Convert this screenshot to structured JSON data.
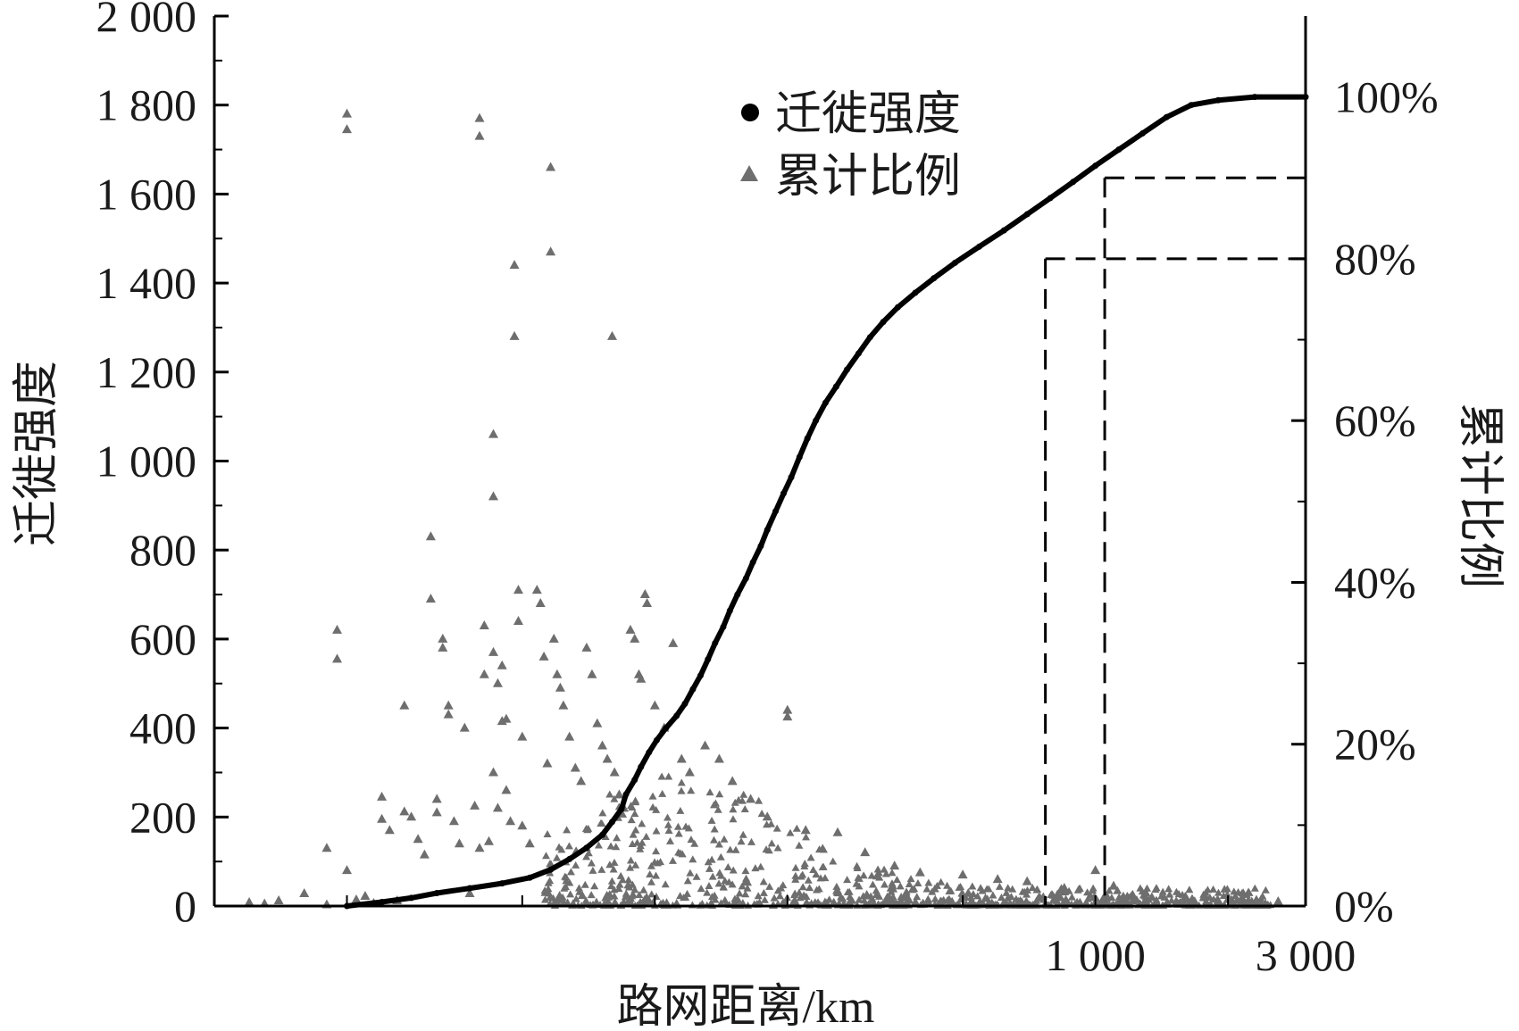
{
  "chart_data": {
    "type": "scatter",
    "xlabel": "路网距离/km",
    "ylabel_left": "迁徙强度",
    "ylabel_right": "累计比例",
    "x_scale": "log",
    "x_range": [
      10,
      3000
    ],
    "x_tick_labels": [
      {
        "value": 1000,
        "label": "1 000"
      },
      {
        "value": 3000,
        "label": "3 000"
      }
    ],
    "y_left_range": [
      0,
      2000
    ],
    "y_left_ticks": [
      "0",
      "200",
      "400",
      "600",
      "800",
      "1 000",
      "1 200",
      "1 400",
      "1 600",
      "1 800",
      "2 000"
    ],
    "y_right_range": [
      0,
      1.1
    ],
    "y_right_ticks": [
      "0%",
      "20%",
      "40%",
      "60%",
      "80%",
      "100%"
    ],
    "grid": false,
    "legend_position": "top-center",
    "series": [
      {
        "name": "迁徙强度",
        "marker": "circle",
        "color": "#000000",
        "axis": "right",
        "points": [
          [
            20,
            0.0
          ],
          [
            24,
            0.005
          ],
          [
            28,
            0.01
          ],
          [
            32,
            0.016
          ],
          [
            38,
            0.022
          ],
          [
            45,
            0.028
          ],
          [
            52,
            0.035
          ],
          [
            58,
            0.045
          ],
          [
            64,
            0.058
          ],
          [
            70,
            0.072
          ],
          [
            76,
            0.088
          ],
          [
            80,
            0.104
          ],
          [
            84,
            0.12
          ],
          [
            86,
            0.138
          ],
          [
            90,
            0.156
          ],
          [
            93,
            0.172
          ],
          [
            97,
            0.19
          ],
          [
            101,
            0.205
          ],
          [
            106,
            0.22
          ],
          [
            112,
            0.235
          ],
          [
            117,
            0.25
          ],
          [
            122,
            0.268
          ],
          [
            127,
            0.285
          ],
          [
            132,
            0.305
          ],
          [
            137,
            0.325
          ],
          [
            143,
            0.345
          ],
          [
            148,
            0.365
          ],
          [
            154,
            0.385
          ],
          [
            161,
            0.405
          ],
          [
            167,
            0.425
          ],
          [
            174,
            0.445
          ],
          [
            180,
            0.465
          ],
          [
            188,
            0.488
          ],
          [
            196,
            0.51
          ],
          [
            204,
            0.53
          ],
          [
            213,
            0.555
          ],
          [
            222,
            0.578
          ],
          [
            232,
            0.6
          ],
          [
            244,
            0.622
          ],
          [
            258,
            0.642
          ],
          [
            273,
            0.663
          ],
          [
            290,
            0.683
          ],
          [
            308,
            0.703
          ],
          [
            330,
            0.722
          ],
          [
            356,
            0.74
          ],
          [
            390,
            0.758
          ],
          [
            430,
            0.776
          ],
          [
            480,
            0.795
          ],
          [
            545,
            0.815
          ],
          [
            620,
            0.835
          ],
          [
            700,
            0.855
          ],
          [
            790,
            0.875
          ],
          [
            890,
            0.895
          ],
          [
            1000,
            0.915
          ],
          [
            1130,
            0.935
          ],
          [
            1280,
            0.955
          ],
          [
            1450,
            0.975
          ],
          [
            1650,
            0.99
          ],
          [
            1900,
            0.996
          ],
          [
            2300,
            1.0
          ],
          [
            3000,
            1.0
          ]
        ]
      },
      {
        "name": "累计比例",
        "marker": "triangle",
        "color": "#6e6e6e",
        "axis": "left",
        "points": [
          [
            12,
            8
          ],
          [
            13,
            5
          ],
          [
            14,
            12
          ],
          [
            16,
            28
          ],
          [
            18,
            3
          ],
          [
            18,
            130
          ],
          [
            19,
            620
          ],
          [
            19,
            555
          ],
          [
            20,
            1780
          ],
          [
            20,
            1745
          ],
          [
            20,
            80
          ],
          [
            21,
            14
          ],
          [
            22,
            22
          ],
          [
            23,
            6
          ],
          [
            24,
            245
          ],
          [
            24,
            195
          ],
          [
            25,
            170
          ],
          [
            26,
            12
          ],
          [
            27,
            450
          ],
          [
            27,
            212
          ],
          [
            28,
            200
          ],
          [
            29,
            150
          ],
          [
            30,
            115
          ],
          [
            31,
            830
          ],
          [
            31,
            690
          ],
          [
            32,
            240
          ],
          [
            32,
            210
          ],
          [
            33,
            600
          ],
          [
            33,
            580
          ],
          [
            34,
            450
          ],
          [
            34,
            430
          ],
          [
            35,
            190
          ],
          [
            36,
            140
          ],
          [
            37,
            400
          ],
          [
            38,
            28
          ],
          [
            39,
            225
          ],
          [
            40,
            130
          ],
          [
            40,
            1770
          ],
          [
            40,
            1730
          ],
          [
            41,
            630
          ],
          [
            41,
            520
          ],
          [
            42,
            145
          ],
          [
            43,
            1060
          ],
          [
            43,
            920
          ],
          [
            43,
            570
          ],
          [
            43,
            300
          ],
          [
            44,
            500
          ],
          [
            44,
            220
          ],
          [
            45,
            540
          ],
          [
            45,
            415
          ],
          [
            46,
            420
          ],
          [
            46,
            260
          ],
          [
            47,
            190
          ],
          [
            48,
            1440
          ],
          [
            48,
            1280
          ],
          [
            49,
            710
          ],
          [
            49,
            640
          ],
          [
            50,
            380
          ],
          [
            50,
            180
          ],
          [
            52,
            140
          ],
          [
            54,
            710
          ],
          [
            55,
            680
          ],
          [
            56,
            560
          ],
          [
            57,
            320
          ],
          [
            58,
            1660
          ],
          [
            58,
            1470
          ],
          [
            59,
            600
          ],
          [
            60,
            520
          ],
          [
            61,
            490
          ],
          [
            62,
            450
          ],
          [
            64,
            380
          ],
          [
            66,
            310
          ],
          [
            68,
            280
          ],
          [
            70,
            580
          ],
          [
            72,
            520
          ],
          [
            74,
            410
          ],
          [
            76,
            360
          ],
          [
            78,
            330
          ],
          [
            80,
            1280
          ],
          [
            81,
            300
          ],
          [
            83,
            250
          ],
          [
            85,
            220
          ],
          [
            88,
            620
          ],
          [
            90,
            600
          ],
          [
            92,
            520
          ],
          [
            93,
            510
          ],
          [
            95,
            700
          ],
          [
            96,
            680
          ],
          [
            100,
            450
          ],
          [
            105,
            400
          ],
          [
            110,
            590
          ],
          [
            115,
            330
          ],
          [
            120,
            300
          ],
          [
            130,
            360
          ],
          [
            140,
            330
          ],
          [
            150,
            280
          ],
          [
            165,
            240
          ],
          [
            180,
            200
          ],
          [
            200,
            440
          ],
          [
            200,
            425
          ],
          [
            220,
            170
          ],
          [
            260,
            165
          ],
          [
            300,
            120
          ],
          [
            350,
            90
          ],
          [
            400,
            75
          ],
          [
            500,
            70
          ],
          [
            600,
            60
          ],
          [
            700,
            55
          ],
          [
            850,
            40
          ],
          [
            1000,
            80
          ],
          [
            1100,
            45
          ],
          [
            1300,
            30
          ],
          [
            1600,
            20
          ],
          [
            2000,
            15
          ],
          [
            2600,
            10
          ]
        ]
      }
    ],
    "reference_lines": [
      {
        "cumulative": 0.8,
        "x": 770
      },
      {
        "cumulative": 0.9,
        "x": 1050
      }
    ]
  }
}
